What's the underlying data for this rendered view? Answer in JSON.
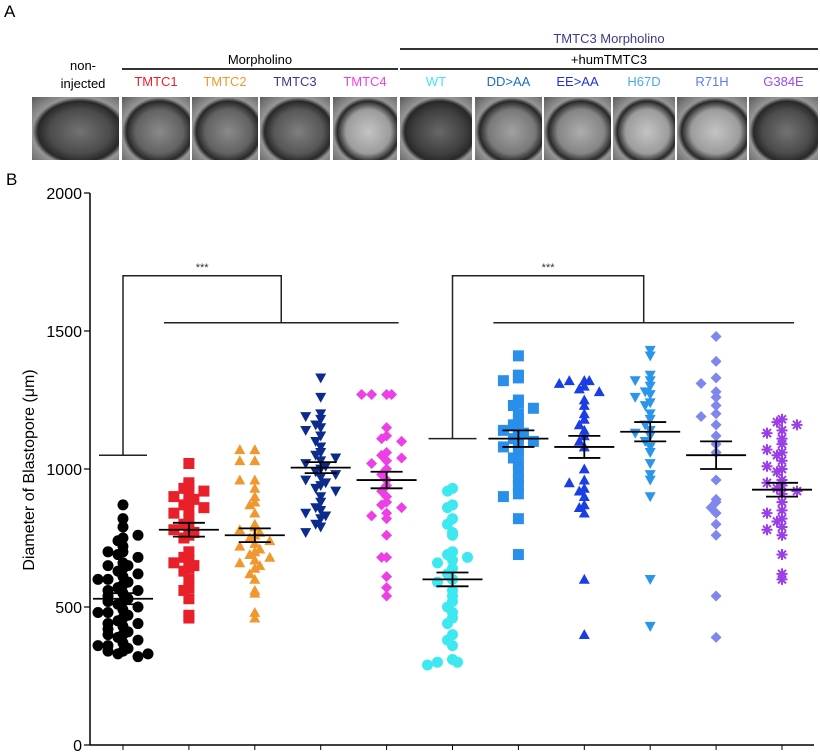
{
  "panel_a": {
    "letter": "A",
    "header_top": "TMTC3 Morpholino",
    "header_top_color": "#3a3a8c",
    "header_morpholino": "Morpholino",
    "header_hum": "+humTMTC3",
    "non_injected": [
      "non-",
      "injected"
    ],
    "labels": [
      {
        "text": "TMTC1",
        "color": "#e8202a"
      },
      {
        "text": "TMTC2",
        "color": "#f0982f"
      },
      {
        "text": "TMTC3",
        "color": "#3a3a8c"
      },
      {
        "text": "TMTC4",
        "color": "#ee3fe6"
      },
      {
        "text": "WT",
        "color": "#3ee8f0"
      },
      {
        "text": "DD>AA",
        "color": "#1c6fc2"
      },
      {
        "text": "EE>AA",
        "color": "#1f2fe0"
      },
      {
        "text": "H67D",
        "color": "#4aa8ea"
      },
      {
        "text": "R71H",
        "color": "#5b7ee6"
      },
      {
        "text": "G384E",
        "color": "#9a4ae8"
      }
    ]
  },
  "panel_b": {
    "letter": "B"
  },
  "chart_data": {
    "type": "scatter",
    "ylabel": "Diameter of Blastopore (μm)",
    "ylim": [
      0,
      2000
    ],
    "yticks": [
      "0",
      "500",
      "1000",
      "1500",
      "2000"
    ],
    "significance": [
      {
        "label": "***",
        "from": 0,
        "to": [
          1,
          4
        ]
      },
      {
        "label": "***",
        "from": 5,
        "to": [
          6,
          10
        ]
      }
    ],
    "series": [
      {
        "color": "#000000",
        "marker": "circle",
        "mean": 530,
        "sem": 20,
        "values": [
          870,
          820,
          790,
          750,
          740,
          720,
          700,
          690,
          680,
          660,
          650,
          640,
          630,
          620,
          610,
          600,
          590,
          580,
          570,
          560,
          550,
          540,
          530,
          520,
          510,
          500,
          490,
          480,
          470,
          460,
          450,
          440,
          430,
          420,
          410,
          400,
          390,
          380,
          370,
          360,
          350,
          340,
          330,
          320,
          760,
          700,
          650,
          600,
          560,
          520,
          480,
          440,
          400,
          360,
          340,
          330
        ]
      },
      {
        "color": "#e8202a",
        "marker": "square",
        "mean": 780,
        "sem": 25,
        "values": [
          1020,
          950,
          940,
          930,
          920,
          910,
          900,
          890,
          880,
          870,
          860,
          850,
          840,
          820,
          800,
          790,
          780,
          770,
          760,
          750,
          700,
          680,
          670,
          660,
          650,
          640,
          630,
          600,
          570,
          560,
          530,
          470,
          460
        ]
      },
      {
        "color": "#f0982f",
        "marker": "triangle-up",
        "mean": 760,
        "sem": 25,
        "values": [
          1070,
          1070,
          1030,
          1030,
          960,
          960,
          930,
          900,
          880,
          870,
          840,
          800,
          790,
          780,
          770,
          760,
          750,
          740,
          730,
          720,
          710,
          700,
          690,
          680,
          670,
          660,
          650,
          640,
          620,
          600,
          560,
          550,
          480,
          460
        ]
      },
      {
        "color": "#0c2b8c",
        "marker": "triangle-down",
        "mean": 1005,
        "sem": 20,
        "values": [
          1330,
          1260,
          1200,
          1190,
          1180,
          1160,
          1150,
          1140,
          1120,
          1100,
          1080,
          1060,
          1050,
          1040,
          1030,
          1020,
          1010,
          1000,
          990,
          980,
          970,
          960,
          950,
          940,
          930,
          920,
          900,
          880,
          860,
          850,
          840,
          830,
          820,
          800,
          790,
          770
        ]
      },
      {
        "color": "#ee3fe6",
        "marker": "diamond",
        "mean": 960,
        "sem": 30,
        "values": [
          1270,
          1270,
          1270,
          1270,
          1150,
          1120,
          1110,
          1100,
          1060,
          1050,
          1040,
          1030,
          1020,
          1000,
          980,
          960,
          940,
          920,
          900,
          880,
          870,
          860,
          840,
          830,
          820,
          760,
          680,
          680,
          610,
          570,
          540
        ]
      },
      {
        "color": "#3ee8f0",
        "marker": "circle",
        "mean": 600,
        "sem": 25,
        "values": [
          930,
          920,
          870,
          860,
          820,
          800,
          770,
          760,
          700,
          690,
          680,
          670,
          660,
          640,
          620,
          600,
          590,
          560,
          540,
          520,
          500,
          480,
          460,
          440,
          400,
          380,
          360,
          310,
          300,
          300,
          290
        ]
      },
      {
        "color": "#2a8fea",
        "marker": "square",
        "mean": 1110,
        "sem": 30,
        "values": [
          1410,
          1340,
          1330,
          1320,
          1250,
          1240,
          1230,
          1220,
          1200,
          1180,
          1160,
          1150,
          1140,
          1130,
          1120,
          1110,
          1100,
          1090,
          1080,
          1060,
          1040,
          1020,
          990,
          960,
          940,
          910,
          900,
          820,
          690
        ]
      },
      {
        "color": "#1a3de6",
        "marker": "triangle-up",
        "mean": 1080,
        "sem": 40,
        "values": [
          1320,
          1320,
          1320,
          1310,
          1300,
          1290,
          1280,
          1250,
          1230,
          1200,
          1180,
          1160,
          1140,
          1120,
          1100,
          1080,
          1000,
          960,
          950,
          930,
          920,
          900,
          870,
          860,
          840,
          600,
          400
        ]
      },
      {
        "color": "#2996ea",
        "marker": "triangle-down",
        "mean": 1135,
        "sem": 35,
        "values": [
          1430,
          1410,
          1340,
          1320,
          1320,
          1300,
          1280,
          1270,
          1260,
          1240,
          1230,
          1200,
          1180,
          1160,
          1140,
          1130,
          1120,
          1100,
          1080,
          1060,
          1020,
          980,
          960,
          900,
          600,
          430
        ]
      },
      {
        "color": "#7f86ee",
        "marker": "diamond",
        "mean": 1050,
        "sem": 50,
        "values": [
          1480,
          1390,
          1330,
          1310,
          1280,
          1260,
          1230,
          1200,
          1190,
          1160,
          1120,
          1090,
          1060,
          960,
          890,
          880,
          860,
          840,
          800,
          760,
          540,
          390
        ]
      },
      {
        "color": "#9a3ee8",
        "marker": "asterisk",
        "mean": 925,
        "sem": 25,
        "values": [
          1180,
          1170,
          1160,
          1140,
          1130,
          1110,
          1090,
          1070,
          1060,
          1050,
          1030,
          1010,
          1000,
          990,
          960,
          950,
          940,
          930,
          920,
          910,
          880,
          850,
          840,
          820,
          810,
          790,
          780,
          760,
          690,
          620,
          600
        ]
      }
    ]
  }
}
